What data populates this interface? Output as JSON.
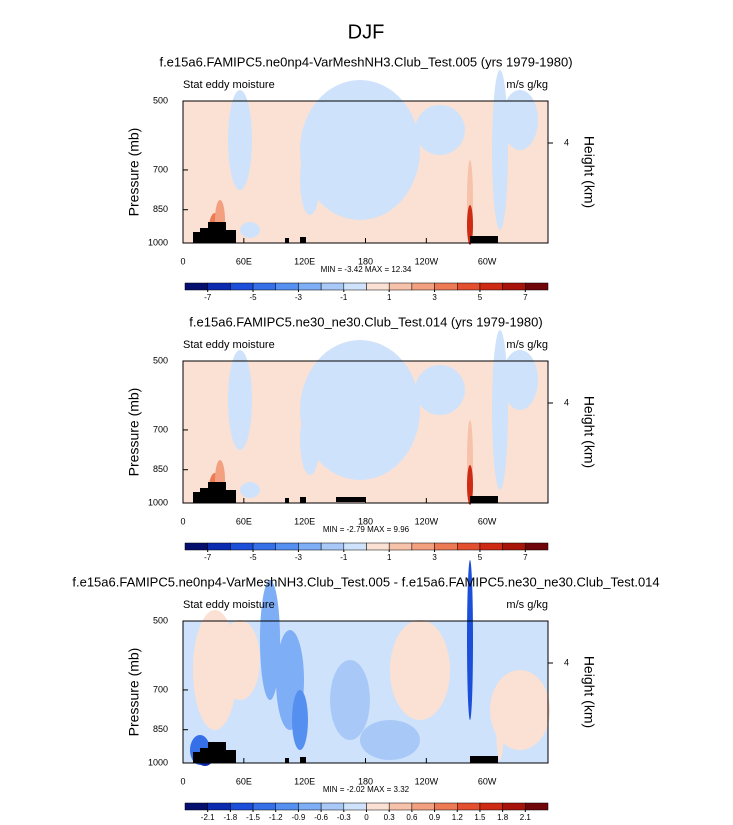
{
  "title": "DJF",
  "chart_data": [
    {
      "type": "contour",
      "title": "f.e15a6.FAMIPC5.ne0np4-VarMeshNH3.Club_Test.005 (yrs 1979-1980)",
      "left_label": "Stat eddy moisture",
      "right_label": "m/s g/kg",
      "ylabel": "Pressure (mb)",
      "y2label": "Height (km)",
      "xlim": [
        0,
        360
      ],
      "xticks": [
        0,
        {
          "value": 60,
          "label": "60E"
        },
        {
          "value": 120,
          "label": "120E"
        },
        180,
        {
          "value": 240,
          "label": "120W"
        },
        {
          "value": 300,
          "label": "60W"
        }
      ],
      "ylim": [
        1000,
        500
      ],
      "yticks": [
        1000,
        850,
        700,
        500
      ],
      "log_y": true,
      "y2lim": [
        0,
        5.68
      ],
      "y2ticks": [
        4
      ],
      "stats": "MIN =  -3.42  MAX =  12.34",
      "colorbar_lim": [
        -8,
        8
      ],
      "colorbar_ticks": [
        -7,
        -5,
        -3,
        -1,
        1,
        3,
        5,
        7
      ],
      "colors": [
        "#05106e",
        "#0a2ab0",
        "#1c4fd9",
        "#3570e8",
        "#5590f0",
        "#7eaef5",
        "#a8c9f8",
        "#cfe2fb",
        "#fbe1d3",
        "#f7c2aa",
        "#f2a07f",
        "#ec7a55",
        "#e4502f",
        "#cf2a14",
        "#a8140a",
        "#70060a"
      ]
    },
    {
      "type": "contour",
      "title": "f.e15a6.FAMIPC5.ne30_ne30.Club_Test.014 (yrs 1979-1980)",
      "left_label": "Stat eddy moisture",
      "right_label": "m/s g/kg",
      "ylabel": "Pressure (mb)",
      "y2label": "Height (km)",
      "xlim": [
        0,
        360
      ],
      "xticks": [
        0,
        {
          "value": 60,
          "label": "60E"
        },
        {
          "value": 120,
          "label": "120E"
        },
        180,
        {
          "value": 240,
          "label": "120W"
        },
        {
          "value": 300,
          "label": "60W"
        }
      ],
      "ylim": [
        1000,
        500
      ],
      "yticks": [
        1000,
        850,
        700,
        500
      ],
      "log_y": true,
      "y2lim": [
        0,
        5.68
      ],
      "y2ticks": [
        4
      ],
      "stats": "MIN =  -2.79  MAX =  9.96",
      "colorbar_lim": [
        -8,
        8
      ],
      "colorbar_ticks": [
        -7,
        -5,
        -3,
        -1,
        1,
        3,
        5,
        7
      ],
      "colors": [
        "#05106e",
        "#0a2ab0",
        "#1c4fd9",
        "#3570e8",
        "#5590f0",
        "#7eaef5",
        "#a8c9f8",
        "#cfe2fb",
        "#fbe1d3",
        "#f7c2aa",
        "#f2a07f",
        "#ec7a55",
        "#e4502f",
        "#cf2a14",
        "#a8140a",
        "#70060a"
      ]
    },
    {
      "type": "contour",
      "title": "f.e15a6.FAMIPC5.ne0np4-VarMeshNH3.Club_Test.005 - f.e15a6.FAMIPC5.ne30_ne30.Club_Test.014",
      "left_label": "Stat eddy moisture",
      "right_label": "m/s g/kg",
      "ylabel": "Pressure (mb)",
      "y2label": "Height (km)",
      "xlim": [
        0,
        360
      ],
      "xticks": [
        0,
        {
          "value": 60,
          "label": "60E"
        },
        {
          "value": 120,
          "label": "120E"
        },
        180,
        {
          "value": 240,
          "label": "120W"
        },
        {
          "value": 300,
          "label": "60W"
        }
      ],
      "ylim": [
        1000,
        500
      ],
      "yticks": [
        1000,
        850,
        700,
        500
      ],
      "log_y": true,
      "y2lim": [
        0,
        5.68
      ],
      "y2ticks": [
        4
      ],
      "stats": "MIN =  -2.02  MAX =  3.32",
      "colorbar_lim": [
        -2.4,
        2.4
      ],
      "colorbar_ticks": [
        -2.1,
        -1.8,
        -1.5,
        -1.2,
        -0.9,
        -0.6,
        -0.3,
        0,
        0.3,
        0.6,
        0.9,
        1.2,
        1.5,
        1.8,
        2.1
      ],
      "colors": [
        "#05106e",
        "#0a2ab0",
        "#1c4fd9",
        "#3570e8",
        "#5590f0",
        "#7eaef5",
        "#a8c9f8",
        "#cfe2fb",
        "#fbe1d3",
        "#f7c2aa",
        "#f2a07f",
        "#ec7a55",
        "#e4502f",
        "#cf2a14",
        "#a8140a",
        "#70060a"
      ]
    }
  ]
}
